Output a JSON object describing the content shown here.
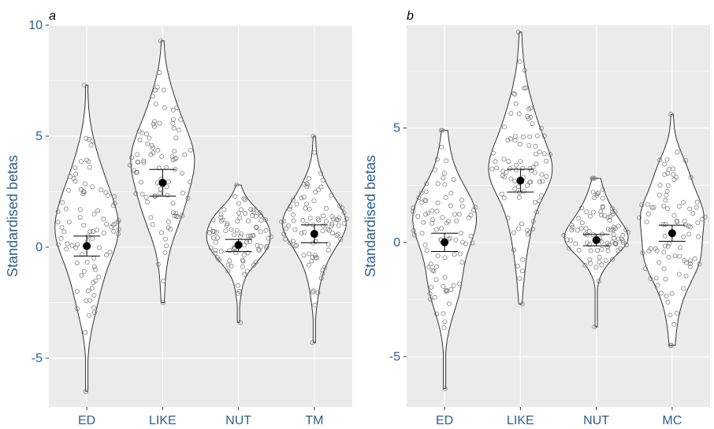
{
  "figure": {
    "panel_labels": [
      "a",
      "b"
    ]
  },
  "colors": {
    "panel_bg": "#ebebeb",
    "grid": "#ffffff",
    "axis_text": "#2e5f8c",
    "violin_fill": "#ffffff",
    "violin_stroke": "#333333",
    "point_stroke": "#707070",
    "mean": "#000000"
  },
  "chart_data": [
    {
      "type": "violin",
      "panel": "a",
      "title": "",
      "xlabel": "",
      "ylabel": "Standardised betas",
      "categories": [
        "ED",
        "LIKE",
        "NUT",
        "TM"
      ],
      "ylim": [
        -7.2,
        10.0
      ],
      "yticks": [
        -5,
        0,
        5,
        10
      ],
      "ytick_labels": [
        "-5",
        "0",
        "5",
        "10"
      ],
      "grid": true,
      "means": [
        0.05,
        2.9,
        0.1,
        0.6
      ],
      "ci": [
        [
          -0.4,
          0.5
        ],
        [
          2.3,
          3.5
        ],
        [
          -0.2,
          0.35
        ],
        [
          0.2,
          1.0
        ]
      ],
      "ranges": [
        [
          -6.5,
          7.3
        ],
        [
          -2.5,
          9.3
        ],
        [
          -3.4,
          2.8
        ],
        [
          -4.3,
          5.0
        ]
      ],
      "density_peaks": [
        0.8,
        3.4,
        0.3,
        0.6
      ],
      "n_points": 90
    },
    {
      "type": "violin",
      "panel": "b",
      "title": "",
      "xlabel": "",
      "ylabel": "Standardised betas",
      "categories": [
        "ED",
        "LIKE",
        "NUT",
        "MC"
      ],
      "ylim": [
        -7.2,
        9.5
      ],
      "yticks": [
        -5,
        0,
        5
      ],
      "ytick_labels": [
        "-5",
        "0",
        "5"
      ],
      "grid": true,
      "means": [
        0.0,
        2.7,
        0.1,
        0.4
      ],
      "ci": [
        [
          -0.4,
          0.4
        ],
        [
          2.2,
          3.2
        ],
        [
          -0.15,
          0.35
        ],
        [
          0.05,
          0.75
        ]
      ],
      "ranges": [
        [
          -6.4,
          4.9
        ],
        [
          -2.7,
          9.2
        ],
        [
          -3.7,
          2.8
        ],
        [
          -4.5,
          5.6
        ]
      ],
      "density_peaks": [
        0.2,
        3.0,
        0.3,
        0.5
      ],
      "n_points": 90
    }
  ]
}
